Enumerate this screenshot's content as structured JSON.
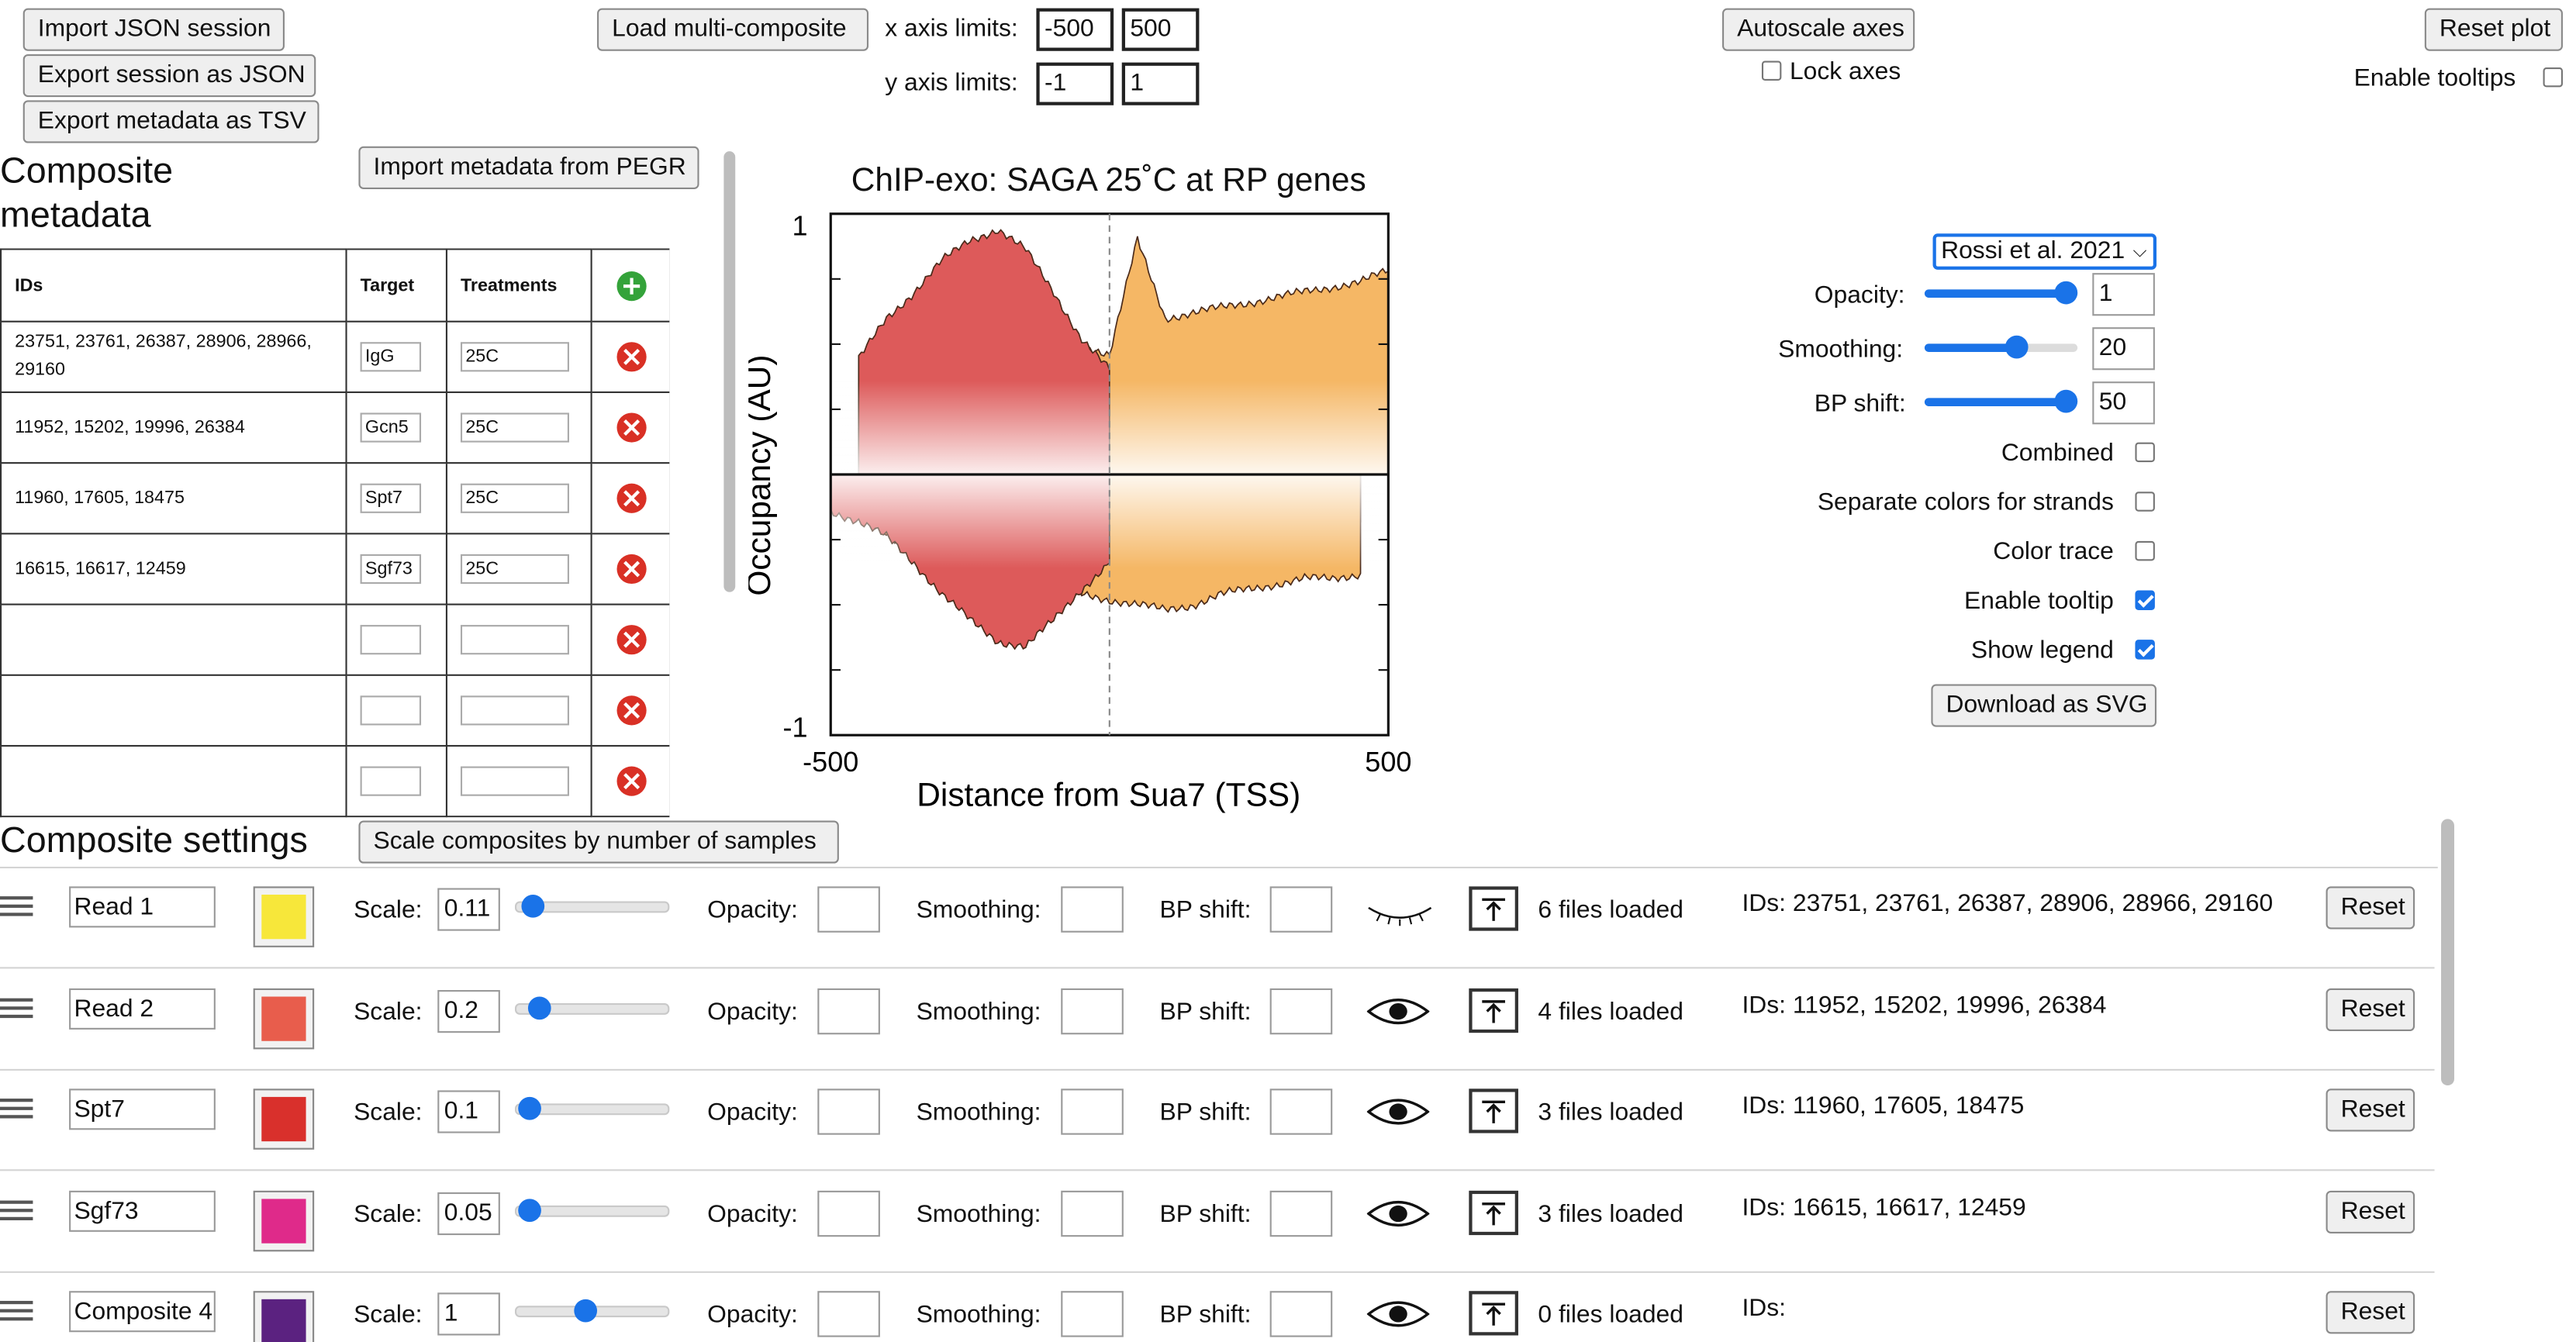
{
  "colors": {
    "accent": "#1a73e8",
    "delete": "#d93025",
    "add": "#34a33a"
  },
  "toolbar": {
    "import_json": "Import JSON session",
    "export_json": "Export session as JSON",
    "export_tsv": "Export metadata as TSV",
    "load_multi": "Load multi-composite",
    "x_limits_label": "x axis limits:",
    "y_limits_label": "y axis limits:",
    "x_min": "-500",
    "x_max": "500",
    "y_min": "-1",
    "y_max": "1",
    "autoscale": "Autoscale axes",
    "lock_axes": "Lock axes",
    "lock_axes_checked": false,
    "reset_plot": "Reset plot",
    "enable_tooltips": "Enable tooltips",
    "enable_tooltips_checked": false
  },
  "metadata": {
    "title": "Composite metadata",
    "import_pegr": "Import metadata from PEGR",
    "columns": [
      "IDs",
      "Target",
      "Treatments"
    ],
    "rows": [
      {
        "ids": "23751, 23761, 26387, 28906, 28966, 29160",
        "target": "IgG",
        "treatment": "25C"
      },
      {
        "ids": "11952, 15202, 19996, 26384",
        "target": "Gcn5",
        "treatment": "25C"
      },
      {
        "ids": "11960, 17605, 18475",
        "target": "Spt7",
        "treatment": "25C"
      },
      {
        "ids": "16615, 16617, 12459",
        "target": "Sgf73",
        "treatment": "25C"
      },
      {
        "ids": "",
        "target": "",
        "treatment": ""
      },
      {
        "ids": "",
        "target": "",
        "treatment": ""
      },
      {
        "ids": "",
        "target": "",
        "treatment": ""
      }
    ]
  },
  "chart_data": {
    "type": "area",
    "title": "ChIP-exo: SAGA 25˚C at RP genes",
    "xlabel": "Distance from Sua7 (TSS)",
    "ylabel": "Occupancy (AU)",
    "xlim": [
      -500,
      500
    ],
    "ylim": [
      -1,
      1
    ],
    "x_tick_labels": [
      "-500",
      "500"
    ],
    "y_tick_labels": [
      "1",
      "-1"
    ],
    "reference_line_x": 0,
    "series": [
      {
        "color": "#f2a24c",
        "sense": [
          [
            -450,
            0.18
          ],
          [
            -400,
            0.24
          ],
          [
            -350,
            0.26
          ],
          [
            -300,
            0.28
          ],
          [
            -250,
            0.3
          ],
          [
            -200,
            0.3
          ],
          [
            -150,
            0.28
          ],
          [
            -100,
            0.26
          ],
          [
            -50,
            0.24
          ],
          [
            0,
            0.22
          ],
          [
            50,
            0.2
          ],
          [
            100,
            0.2
          ],
          [
            150,
            0.22
          ],
          [
            200,
            0.22
          ],
          [
            250,
            0.24
          ],
          [
            300,
            0.22
          ],
          [
            350,
            0.24
          ],
          [
            400,
            0.24
          ],
          [
            450,
            0.26
          ],
          [
            500,
            0.26
          ]
        ],
        "antisense": [
          [
            -500,
            -0.1
          ],
          [
            -450,
            -0.14
          ],
          [
            -400,
            -0.18
          ],
          [
            -350,
            -0.2
          ],
          [
            -300,
            -0.24
          ],
          [
            -250,
            -0.26
          ],
          [
            -200,
            -0.28
          ],
          [
            -150,
            -0.26
          ],
          [
            -100,
            -0.24
          ],
          [
            -50,
            -0.22
          ],
          [
            0,
            -0.22
          ],
          [
            50,
            -0.22
          ],
          [
            100,
            -0.24
          ],
          [
            150,
            -0.24
          ],
          [
            200,
            -0.22
          ],
          [
            250,
            -0.22
          ],
          [
            300,
            -0.2
          ],
          [
            350,
            -0.2
          ],
          [
            400,
            -0.18
          ],
          [
            450,
            -0.18
          ]
        ]
      },
      {
        "color": "#eb8a3c",
        "sense": [
          [
            -450,
            0.3
          ],
          [
            -400,
            0.34
          ],
          [
            -350,
            0.36
          ],
          [
            -300,
            0.38
          ],
          [
            -250,
            0.4
          ],
          [
            -200,
            0.42
          ],
          [
            -150,
            0.44
          ],
          [
            -100,
            0.42
          ],
          [
            -50,
            0.38
          ],
          [
            0,
            0.34
          ],
          [
            50,
            0.44
          ],
          [
            100,
            0.4
          ],
          [
            150,
            0.42
          ],
          [
            200,
            0.42
          ],
          [
            250,
            0.44
          ],
          [
            300,
            0.42
          ],
          [
            350,
            0.42
          ],
          [
            400,
            0.44
          ],
          [
            450,
            0.46
          ],
          [
            500,
            0.46
          ]
        ],
        "antisense": [
          [
            -500,
            -0.12
          ],
          [
            -450,
            -0.16
          ],
          [
            -400,
            -0.22
          ],
          [
            -350,
            -0.3
          ],
          [
            -300,
            -0.34
          ],
          [
            -250,
            -0.36
          ],
          [
            -200,
            -0.38
          ],
          [
            -150,
            -0.36
          ],
          [
            -100,
            -0.34
          ],
          [
            -50,
            -0.32
          ],
          [
            0,
            -0.3
          ],
          [
            50,
            -0.34
          ],
          [
            100,
            -0.3
          ],
          [
            150,
            -0.26
          ],
          [
            200,
            -0.22
          ],
          [
            250,
            -0.2
          ],
          [
            300,
            -0.18
          ],
          [
            350,
            -0.17
          ],
          [
            400,
            -0.16
          ],
          [
            450,
            -0.16
          ]
        ]
      },
      {
        "color": "#f5b765",
        "sense": [
          [
            -450,
            0.36
          ],
          [
            -400,
            0.42
          ],
          [
            -350,
            0.5
          ],
          [
            -300,
            0.55
          ],
          [
            -250,
            0.6
          ],
          [
            -200,
            0.62
          ],
          [
            -150,
            0.6
          ],
          [
            -100,
            0.56
          ],
          [
            -50,
            0.5
          ],
          [
            0,
            0.46
          ],
          [
            50,
            0.9
          ],
          [
            100,
            0.6
          ],
          [
            150,
            0.62
          ],
          [
            200,
            0.64
          ],
          [
            250,
            0.66
          ],
          [
            300,
            0.68
          ],
          [
            350,
            0.7
          ],
          [
            400,
            0.72
          ],
          [
            450,
            0.74
          ],
          [
            500,
            0.78
          ]
        ],
        "antisense": [
          [
            -500,
            -0.1
          ],
          [
            -450,
            -0.14
          ],
          [
            -400,
            -0.2
          ],
          [
            -350,
            -0.26
          ],
          [
            -300,
            -0.3
          ],
          [
            -250,
            -0.34
          ],
          [
            -200,
            -0.38
          ],
          [
            -150,
            -0.42
          ],
          [
            -100,
            -0.44
          ],
          [
            -50,
            -0.46
          ],
          [
            0,
            -0.48
          ],
          [
            50,
            -0.5
          ],
          [
            100,
            -0.52
          ],
          [
            150,
            -0.5
          ],
          [
            200,
            -0.46
          ],
          [
            250,
            -0.44
          ],
          [
            300,
            -0.42
          ],
          [
            350,
            -0.4
          ],
          [
            400,
            -0.4
          ],
          [
            450,
            -0.38
          ]
        ]
      },
      {
        "color": "#dd5a5a",
        "sense": [
          [
            -450,
            0.44
          ],
          [
            -400,
            0.6
          ],
          [
            -350,
            0.7
          ],
          [
            -300,
            0.82
          ],
          [
            -250,
            0.9
          ],
          [
            -200,
            0.94
          ],
          [
            -150,
            0.86
          ],
          [
            -100,
            0.7
          ],
          [
            -50,
            0.52
          ],
          [
            0,
            0.4
          ]
        ],
        "antisense": [
          [
            -500,
            -0.14
          ],
          [
            -450,
            -0.18
          ],
          [
            -400,
            -0.24
          ],
          [
            -350,
            -0.34
          ],
          [
            -300,
            -0.46
          ],
          [
            -250,
            -0.56
          ],
          [
            -200,
            -0.64
          ],
          [
            -150,
            -0.66
          ],
          [
            -100,
            -0.56
          ],
          [
            -50,
            -0.44
          ],
          [
            0,
            -0.34
          ]
        ]
      }
    ]
  },
  "settings": {
    "eye_color": "#111",
    "opacity_label": "Opacity:",
    "opacity": "1",
    "smoothing_label": "Smoothing:",
    "smoothing": "20",
    "smoothing_frac": 0.62,
    "bp_shift_label": "BP shift:",
    "bp_shift": "50",
    "opacity_frac": 1.0,
    "bp_shift_frac": 1.0,
    "preset": "Rossi et al. 2021",
    "combined": "Combined",
    "combined_checked": false,
    "separate_colors": "Separate colors for strands",
    "separate_colors_checked": false,
    "color_trace": "Color trace",
    "color_trace_checked": false,
    "enable_tooltip": "Enable tooltip",
    "enable_tooltip_checked": true,
    "show_legend": "Show legend",
    "show_legend_checked": true,
    "download_svg": "Download as SVG"
  },
  "composite_settings": {
    "title": "Composite settings",
    "scale_button": "Scale composites by number of samples",
    "scale_label": "Scale:",
    "opacity_label": "Opacity:",
    "smoothing_label": "Smoothing:",
    "bp_shift_label": "BP shift:",
    "reset": "Reset",
    "rows": [
      {
        "name": "Read 1",
        "color": "#f7e73a",
        "scale": "0.11",
        "scale_frac": 0.05,
        "visible": false,
        "files": "6 files loaded",
        "ids": "IDs: 23751, 23761, 26387, 28906, 28966, 29160"
      },
      {
        "name": "Read 2",
        "color": "#e85d4c",
        "scale": "0.2",
        "scale_frac": 0.1,
        "visible": true,
        "files": "4 files loaded",
        "ids": "IDs: 11952, 15202, 19996, 26384"
      },
      {
        "name": "Spt7",
        "color": "#d9302c",
        "scale": "0.1",
        "scale_frac": 0.03,
        "visible": true,
        "files": "3 files loaded",
        "ids": "IDs: 11960, 17605, 18475"
      },
      {
        "name": "Sgf73",
        "color": "#df2a8a",
        "scale": "0.05",
        "scale_frac": 0.03,
        "visible": true,
        "files": "3 files loaded",
        "ids": "IDs: 16615, 16617, 12459"
      },
      {
        "name": "Composite 4",
        "color": "#5b2280",
        "scale": "1",
        "scale_frac": 0.45,
        "visible": true,
        "files": "0 files loaded",
        "ids": "IDs:"
      }
    ]
  }
}
